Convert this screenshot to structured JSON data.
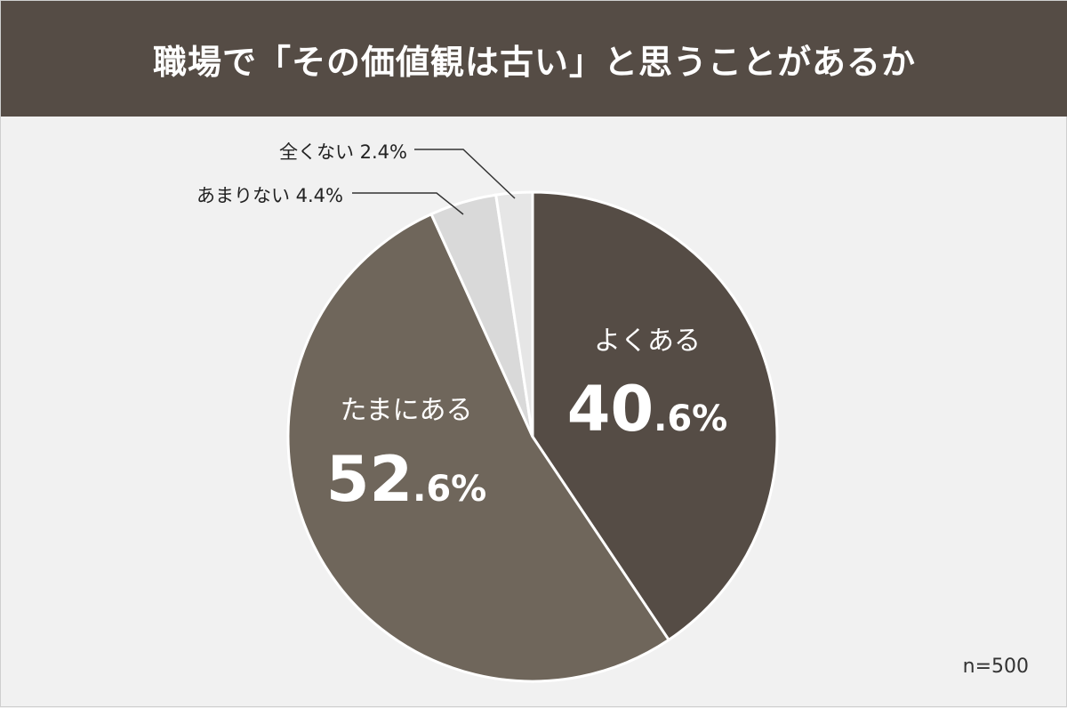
{
  "header": {
    "title": "職場で「その価値観は古い」と思うことがあるか"
  },
  "sample_size": "n=500",
  "chart_data": {
    "type": "pie",
    "title": "職場で「その価値観は古い」と思うことがあるか",
    "n": 500,
    "slices": [
      {
        "label": "よくある",
        "value": 40.6,
        "value_major": "40",
        "value_minor": ".6%",
        "color": "#554c45"
      },
      {
        "label": "たまにある",
        "value": 52.6,
        "value_major": "52",
        "value_minor": ".6%",
        "color": "#6f665b"
      },
      {
        "label": "あまりない",
        "value": 4.4,
        "display": "あまりない 4.4%",
        "color": "#d9d9d9"
      },
      {
        "label": "全くない",
        "value": 2.4,
        "display": "全くない 2.4%",
        "color": "#e6e6e6"
      }
    ],
    "start_angle": "12 o'clock",
    "direction": "clockwise",
    "legend": "none",
    "label_text_color": "#ffffff",
    "callout_text_color": "#222222"
  }
}
